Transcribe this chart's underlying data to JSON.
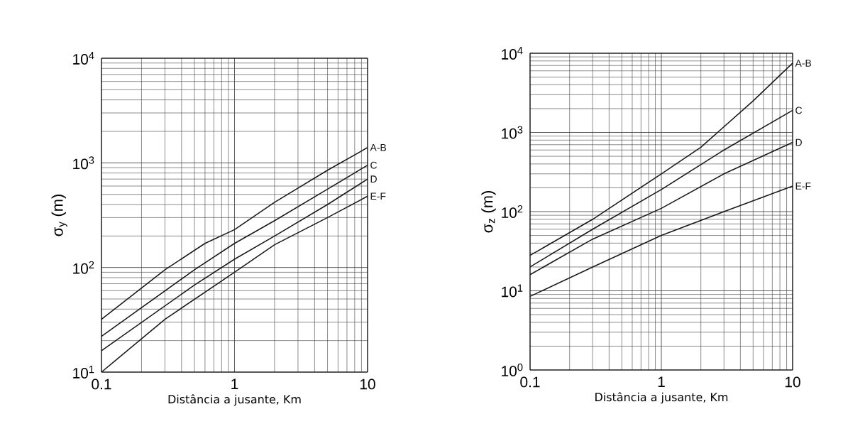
{
  "chart_data": [
    {
      "type": "line",
      "xlabel": "Distância a jusante, Km",
      "ylabel": "σ$_{y}$ (m)",
      "log": "xy",
      "grid": true,
      "marker": "none",
      "line_style": "solid",
      "xlim": [
        0.1,
        10
      ],
      "ylim": [
        10,
        10000
      ],
      "xticks": [
        0.1,
        1,
        10
      ],
      "yticks": [
        {
          "value": 10,
          "label": "10$^{1}$"
        },
        {
          "value": 100,
          "label": "10$^{2}$"
        },
        {
          "value": 1000,
          "label": "10$^{3}$"
        },
        {
          "value": 10000,
          "label": "10$^{4}$"
        }
      ],
      "series": [
        {
          "name": "A-B",
          "color": "#1a1a1a",
          "x": [
            0.1,
            0.3,
            0.6,
            1,
            2,
            5,
            10
          ],
          "values": [
            32,
            95,
            170,
            230,
            420,
            850,
            1400
          ]
        },
        {
          "name": "C",
          "color": "#1a1a1a",
          "x": [
            0.1,
            0.5,
            1,
            2,
            5,
            10
          ],
          "values": [
            22,
            95,
            170,
            280,
            560,
            950
          ]
        },
        {
          "name": "D",
          "color": "#1a1a1a",
          "x": [
            0.1,
            0.5,
            1,
            2,
            5,
            10
          ],
          "values": [
            16,
            68,
            120,
            200,
            400,
            700
          ]
        },
        {
          "name": "E-F",
          "color": "#1a1a1a",
          "x": [
            0.1,
            0.3,
            1,
            2,
            5,
            10
          ],
          "values": [
            10,
            32,
            90,
            165,
            300,
            480
          ]
        }
      ]
    },
    {
      "type": "line",
      "xlabel": "Distância a jusante, Km",
      "ylabel": "σ$_{z}$ (m)",
      "log": "xy",
      "grid": true,
      "marker": "none",
      "line_style": "solid",
      "xlim": [
        0.1,
        10
      ],
      "ylim": [
        1,
        10000
      ],
      "xticks": [
        0.1,
        1,
        10
      ],
      "yticks": [
        {
          "value": 1,
          "label": "10$^{0}$"
        },
        {
          "value": 10,
          "label": "10$^{1}$"
        },
        {
          "value": 100,
          "label": "10$^{2}$"
        },
        {
          "value": 1000,
          "label": "10$^{3}$"
        },
        {
          "value": 10000,
          "label": "10$^{4}$"
        }
      ],
      "series": [
        {
          "name": "A-B",
          "color": "#1a1a1a",
          "x": [
            0.1,
            0.3,
            1,
            2,
            5,
            10
          ],
          "values": [
            28,
            80,
            300,
            650,
            2500,
            7500
          ]
        },
        {
          "name": "C",
          "color": "#1a1a1a",
          "x": [
            0.1,
            0.3,
            1,
            3,
            10
          ],
          "values": [
            20,
            60,
            190,
            600,
            1900
          ]
        },
        {
          "name": "D",
          "color": "#1a1a1a",
          "x": [
            0.1,
            0.3,
            1,
            3,
            10
          ],
          "values": [
            16,
            45,
            110,
            300,
            750
          ]
        },
        {
          "name": "E-F",
          "color": "#1a1a1a",
          "x": [
            0.1,
            0.3,
            1,
            3,
            10
          ],
          "values": [
            8.5,
            20,
            50,
            100,
            210
          ]
        }
      ]
    }
  ]
}
